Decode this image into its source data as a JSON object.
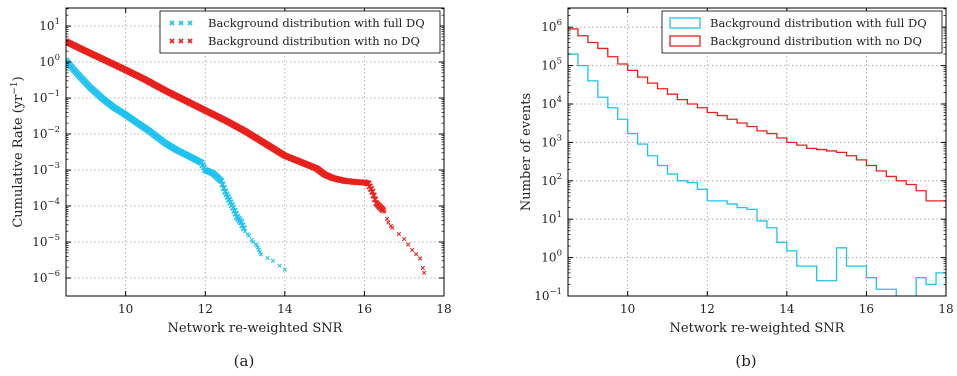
{
  "chart_data": [
    {
      "type": "scatter",
      "caption": "(a)",
      "xlabel": "Network re-weighted SNR",
      "ylabel": "Cumulative Rate (yr",
      "ylabel_sup": "−1",
      "ylabel_close": ")",
      "xlim": [
        8.5,
        18
      ],
      "ylim_log10": [
        -6.5,
        1.5
      ],
      "xscale": "linear",
      "yscale": "log",
      "grid": true,
      "legend_position": "top-right",
      "xticks": [
        10,
        12,
        14,
        16,
        18
      ],
      "yticks_exp": [
        1,
        0,
        -1,
        -2,
        -3,
        -4,
        -5,
        -6
      ],
      "series": [
        {
          "name": "Background distribution with full DQ",
          "color": "#1ec3f0",
          "marker": "x",
          "points": [
            [
              8.5,
              1.1
            ],
            [
              8.8,
              0.45
            ],
            [
              9.1,
              0.2
            ],
            [
              9.4,
              0.1
            ],
            [
              9.7,
              0.055
            ],
            [
              10.0,
              0.034
            ],
            [
              10.3,
              0.02
            ],
            [
              10.6,
              0.012
            ],
            [
              11.0,
              0.0055
            ],
            [
              11.3,
              0.0035
            ],
            [
              11.6,
              0.0024
            ],
            [
              11.9,
              0.0016
            ],
            [
              12.0,
              0.001
            ],
            [
              12.2,
              0.0008
            ],
            [
              12.4,
              0.0005
            ],
            [
              12.5,
              0.00025
            ],
            [
              12.6,
              0.00015
            ],
            [
              12.7,
              9e-05
            ],
            [
              12.8,
              5e-05
            ],
            [
              12.9,
              3.5e-05
            ],
            [
              13.0,
              2e-05
            ],
            [
              13.1,
              1.5e-05
            ],
            [
              13.2,
              1e-05
            ],
            [
              13.3,
              8e-06
            ],
            [
              13.35,
              6e-06
            ],
            [
              13.4,
              4.5e-06
            ],
            [
              13.7,
              3e-06
            ],
            [
              14.0,
              1.7e-06
            ]
          ]
        },
        {
          "name": "Background distribution with no DQ",
          "color": "#e8201c",
          "marker": "x",
          "points": [
            [
              8.5,
              3.7
            ],
            [
              9.0,
              2.0
            ],
            [
              9.5,
              1.1
            ],
            [
              10.0,
              0.6
            ],
            [
              10.5,
              0.32
            ],
            [
              11.0,
              0.16
            ],
            [
              11.5,
              0.085
            ],
            [
              12.0,
              0.045
            ],
            [
              12.5,
              0.024
            ],
            [
              13.0,
              0.012
            ],
            [
              13.5,
              0.0055
            ],
            [
              14.0,
              0.0025
            ],
            [
              14.5,
              0.0015
            ],
            [
              14.8,
              0.0011
            ],
            [
              15.0,
              0.00075
            ],
            [
              15.2,
              0.0006
            ],
            [
              15.5,
              0.0005
            ],
            [
              15.8,
              0.00046
            ],
            [
              16.0,
              0.00045
            ],
            [
              16.1,
              0.00042
            ],
            [
              16.2,
              0.00025
            ],
            [
              16.3,
              0.00012
            ],
            [
              16.5,
              7e-05
            ],
            [
              16.6,
              3.5e-05
            ],
            [
              16.7,
              2.5e-05
            ],
            [
              17.0,
              1.2e-05
            ],
            [
              17.2,
              6e-06
            ],
            [
              17.4,
              3.5e-06
            ],
            [
              17.5,
              1.4e-06
            ]
          ]
        }
      ]
    },
    {
      "type": "histogram",
      "caption": "(b)",
      "xlabel": "Network re-weighted SNR",
      "ylabel": "Number of events",
      "xlim": [
        8.5,
        18
      ],
      "ylim_log10": [
        -1,
        6.5
      ],
      "xscale": "linear",
      "yscale": "log",
      "grid": true,
      "legend_position": "top-right",
      "xticks": [
        10,
        12,
        14,
        16,
        18
      ],
      "yticks_exp": [
        6,
        5,
        4,
        3,
        2,
        1,
        0,
        -1
      ],
      "bin_width": 0.25,
      "series": [
        {
          "name": "Background distribution with full DQ",
          "color": "#1ec3f0",
          "values": [
            200000,
            100000,
            40000,
            15000,
            8000,
            4000,
            1700,
            900,
            450,
            250,
            150,
            100,
            90,
            60,
            30,
            30,
            25,
            20,
            18,
            9,
            6,
            2.5,
            1.5,
            0.6,
            0.6,
            0.25,
            0.25,
            1.8,
            0.6,
            0.6,
            0.3,
            0.15,
            0.15,
            0.08,
            0.08,
            0.3,
            0.2,
            0.4,
            0.12,
            0.12
          ]
        },
        {
          "name": "Background distribution with no DQ",
          "color": "#e8201c",
          "values": [
            900000,
            600000,
            400000,
            280000,
            170000,
            110000,
            75000,
            50000,
            35000,
            25000,
            18000,
            13000,
            10000,
            8000,
            6000,
            5000,
            4000,
            3200,
            2600,
            2000,
            1700,
            1300,
            1000,
            850,
            700,
            650,
            600,
            550,
            450,
            350,
            250,
            180,
            130,
            100,
            80,
            55,
            30,
            30,
            20,
            15
          ]
        }
      ]
    }
  ]
}
